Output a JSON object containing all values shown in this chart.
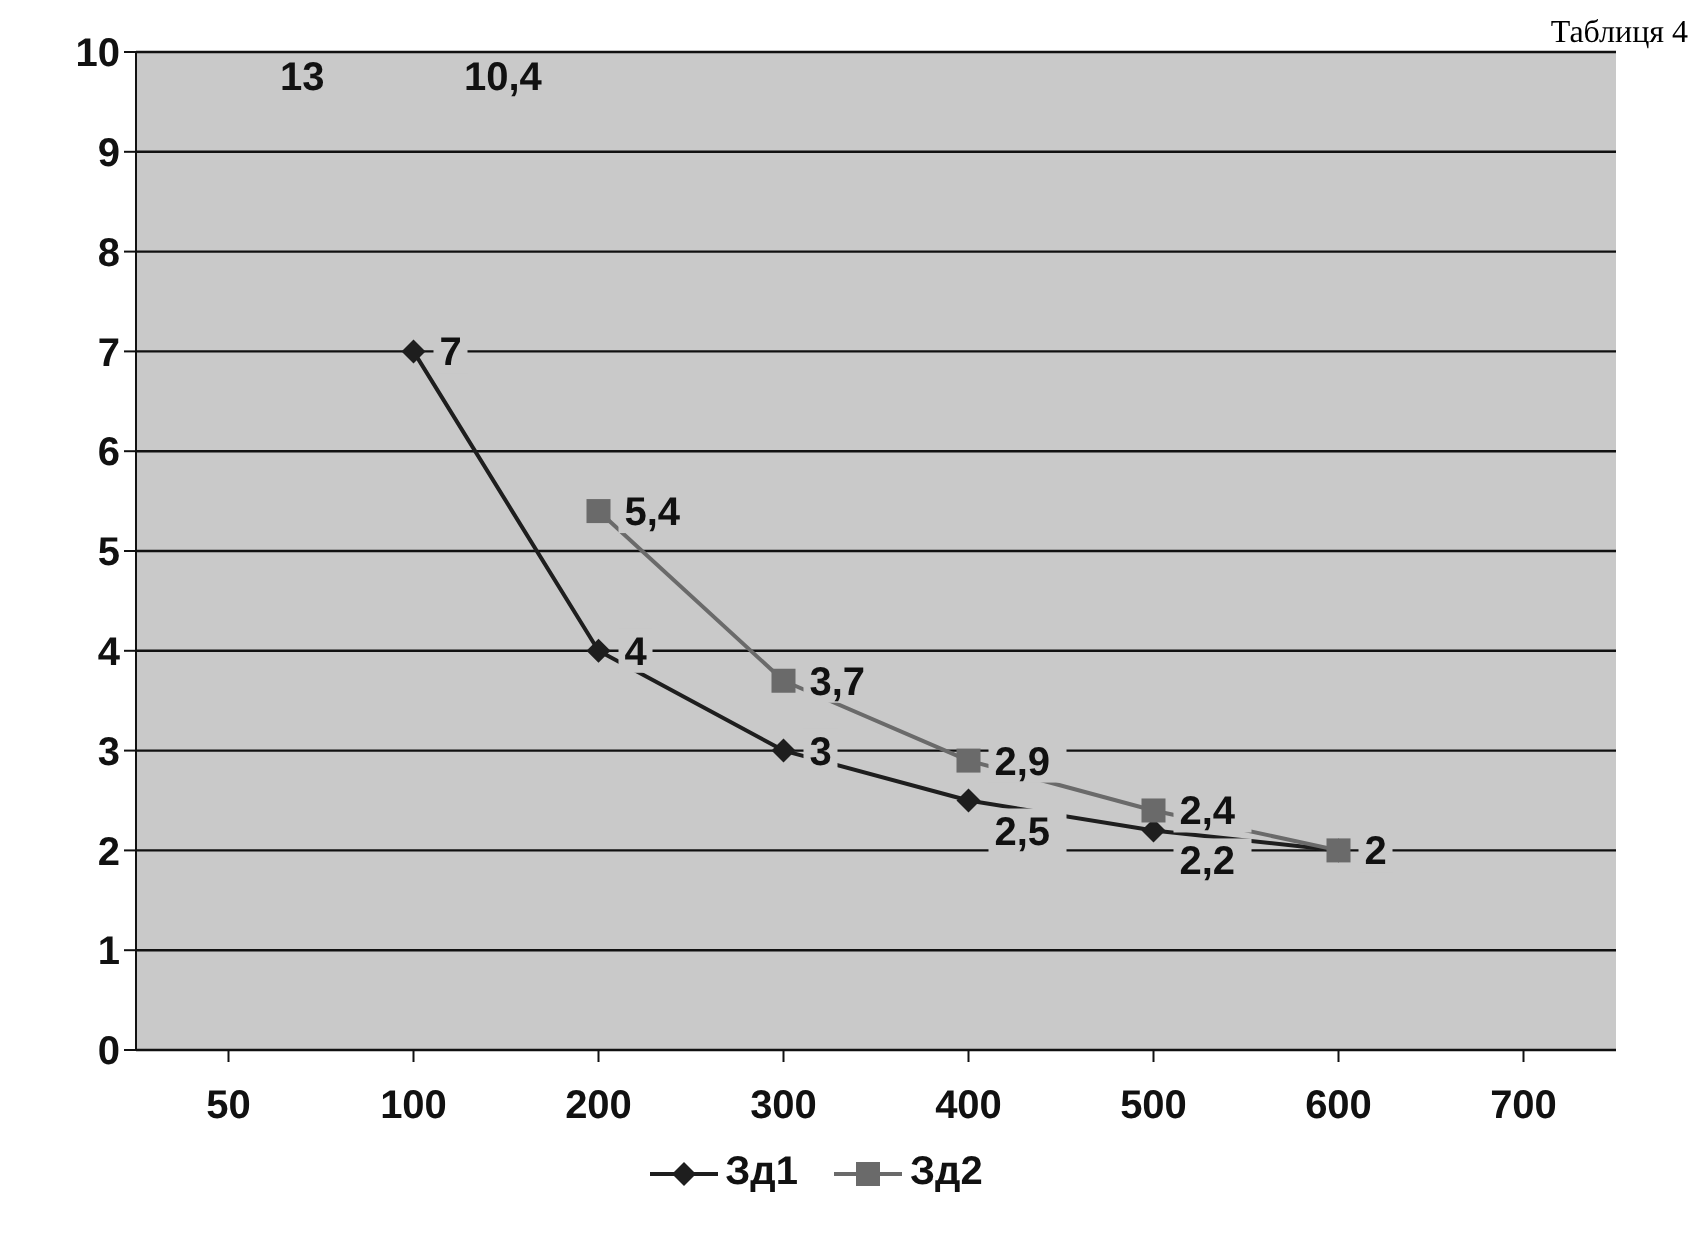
{
  "chart_data": {
    "type": "line",
    "annotations": [
      "Таблиця 4",
      "13",
      "10,4"
    ],
    "categories": [
      "50",
      "100",
      "200",
      "300",
      "400",
      "500",
      "600",
      "700"
    ],
    "series": [
      {
        "name": "Зд1",
        "color": "#1e1e1e",
        "marker": "diamond",
        "values": [
          null,
          7,
          4,
          3,
          2.5,
          2.2,
          2,
          null
        ],
        "value_labels": [
          null,
          "7",
          "4",
          "3",
          "2,5",
          "2,2",
          null,
          null
        ]
      },
      {
        "name": "Зд2",
        "color": "#6a6a6a",
        "marker": "square",
        "values": [
          null,
          null,
          5.4,
          3.7,
          2.9,
          2.4,
          2,
          null
        ],
        "value_labels": [
          null,
          null,
          "5,4",
          "3,7",
          "2,9",
          "2,4",
          "2",
          null
        ]
      }
    ],
    "ylim": [
      0,
      10
    ],
    "yticks": [
      0,
      1,
      2,
      3,
      4,
      5,
      6,
      7,
      8,
      9,
      10
    ],
    "grid": "y",
    "legend": "bottom",
    "data_labels": false
  }
}
